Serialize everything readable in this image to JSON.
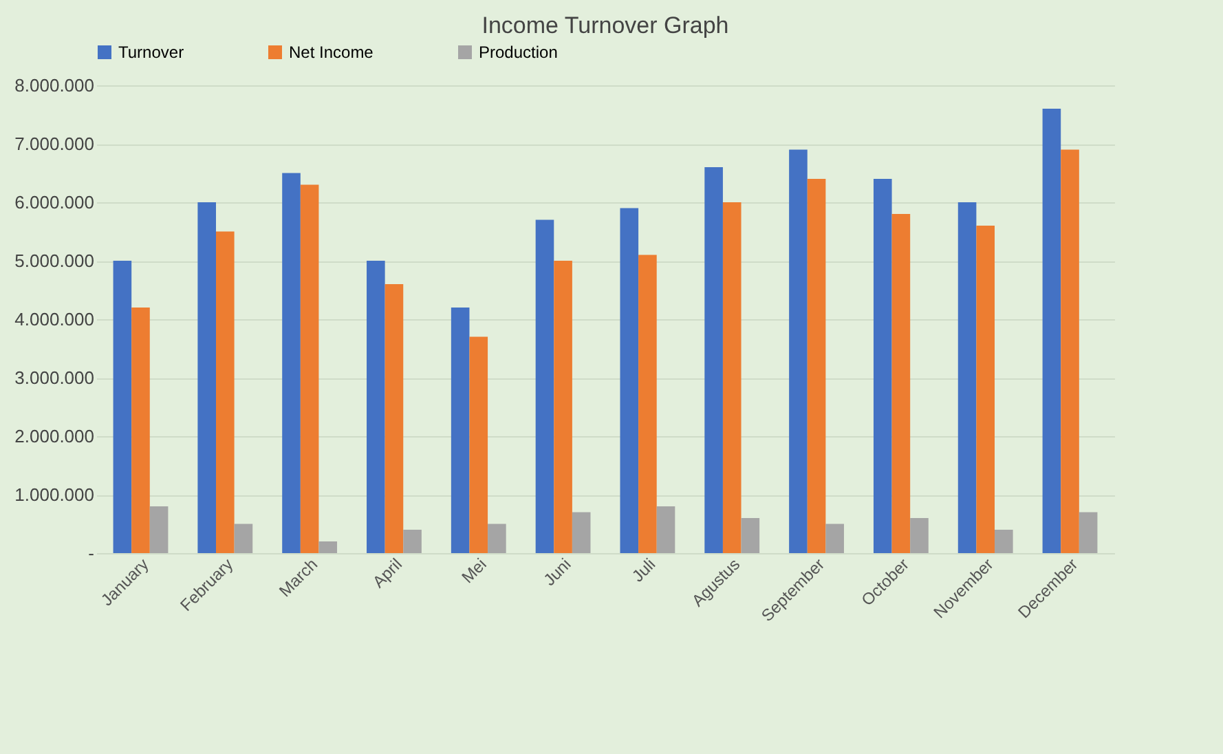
{
  "chart_data": {
    "type": "bar",
    "title": "Income Turnover Graph",
    "categories": [
      "January",
      "February",
      "March",
      "April",
      "Mei",
      "Juni",
      "Juli",
      "Agustus",
      "September",
      "October",
      "November",
      "December"
    ],
    "series": [
      {
        "name": "Turnover",
        "color": "#4472c4",
        "values": [
          5000000,
          6000000,
          6500000,
          5000000,
          4200000,
          5700000,
          5900000,
          6600000,
          6900000,
          6400000,
          6000000,
          7600000
        ]
      },
      {
        "name": "Net Income",
        "color": "#ed7d31",
        "values": [
          4200000,
          5500000,
          6300000,
          4600000,
          3700000,
          5000000,
          5100000,
          6000000,
          6400000,
          5800000,
          5600000,
          6900000
        ]
      },
      {
        "name": "Production",
        "color": "#a5a5a5",
        "values": [
          800000,
          500000,
          200000,
          400000,
          500000,
          700000,
          800000,
          600000,
          500000,
          600000,
          400000,
          700000
        ]
      }
    ],
    "ylim": [
      0,
      8000000
    ],
    "yticks": [
      {
        "value": 0,
        "label": "-"
      },
      {
        "value": 1000000,
        "label": "1.000.000"
      },
      {
        "value": 2000000,
        "label": "2.000.000"
      },
      {
        "value": 3000000,
        "label": "3.000.000"
      },
      {
        "value": 4000000,
        "label": "4.000.000"
      },
      {
        "value": 5000000,
        "label": "5.000.000"
      },
      {
        "value": 6000000,
        "label": "6.000.000"
      },
      {
        "value": 7000000,
        "label": "7.000.000"
      },
      {
        "value": 8000000,
        "label": "8.000.000"
      }
    ],
    "grid": "y",
    "legend": "top"
  }
}
